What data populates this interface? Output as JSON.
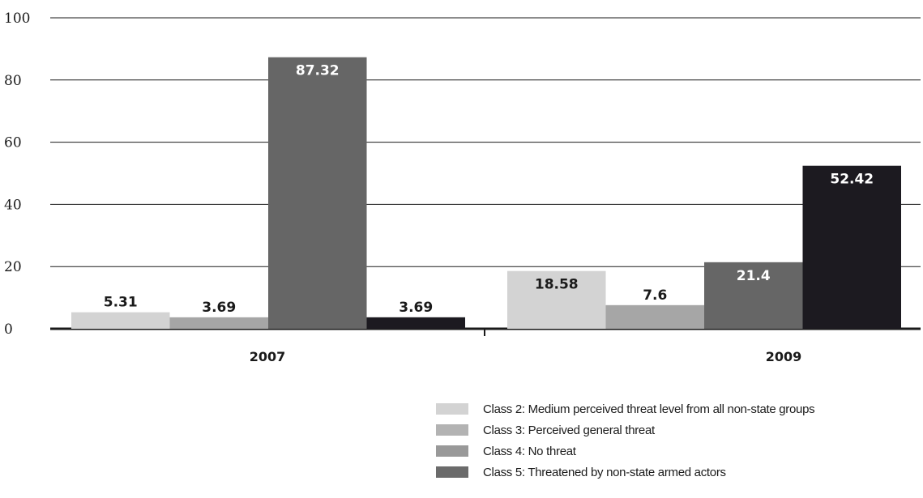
{
  "chart_data": {
    "type": "bar",
    "categories": [
      "2007",
      "2009"
    ],
    "ylim": [
      0,
      100
    ],
    "yticks": [
      0,
      20,
      40,
      60,
      80,
      100
    ],
    "grid": true,
    "legend_position": "bottom-right",
    "series": [
      {
        "name": "Class 2: Medium perceived threat level from all non-state groups",
        "values": [
          5.31,
          18.58
        ],
        "color": "#d3d3d3",
        "legend_color": "#d3d3d3",
        "label_color": "#1a1a1a"
      },
      {
        "name": "Class 3: Perceived general threat",
        "values": [
          3.69,
          7.6
        ],
        "color": "#a6a6a6",
        "legend_color": "#b3b3b3",
        "label_color": "#1a1a1a"
      },
      {
        "name": "Class 4: No threat",
        "values": [
          87.32,
          21.4
        ],
        "color": "#666666",
        "legend_color": "#999999",
        "label_color": "#ffffff"
      },
      {
        "name": "Class 5: Threatened by non-state armed actors",
        "values": [
          3.69,
          52.42
        ],
        "color": "#1c1a20",
        "legend_color": "#6b6b6b",
        "label_color": "#ffffff"
      }
    ],
    "data_labels": [
      [
        "5.31",
        "18.58"
      ],
      [
        "3.69",
        "7.6"
      ],
      [
        "87.32",
        "21.4"
      ],
      [
        "3.69",
        "52.42"
      ]
    ]
  }
}
